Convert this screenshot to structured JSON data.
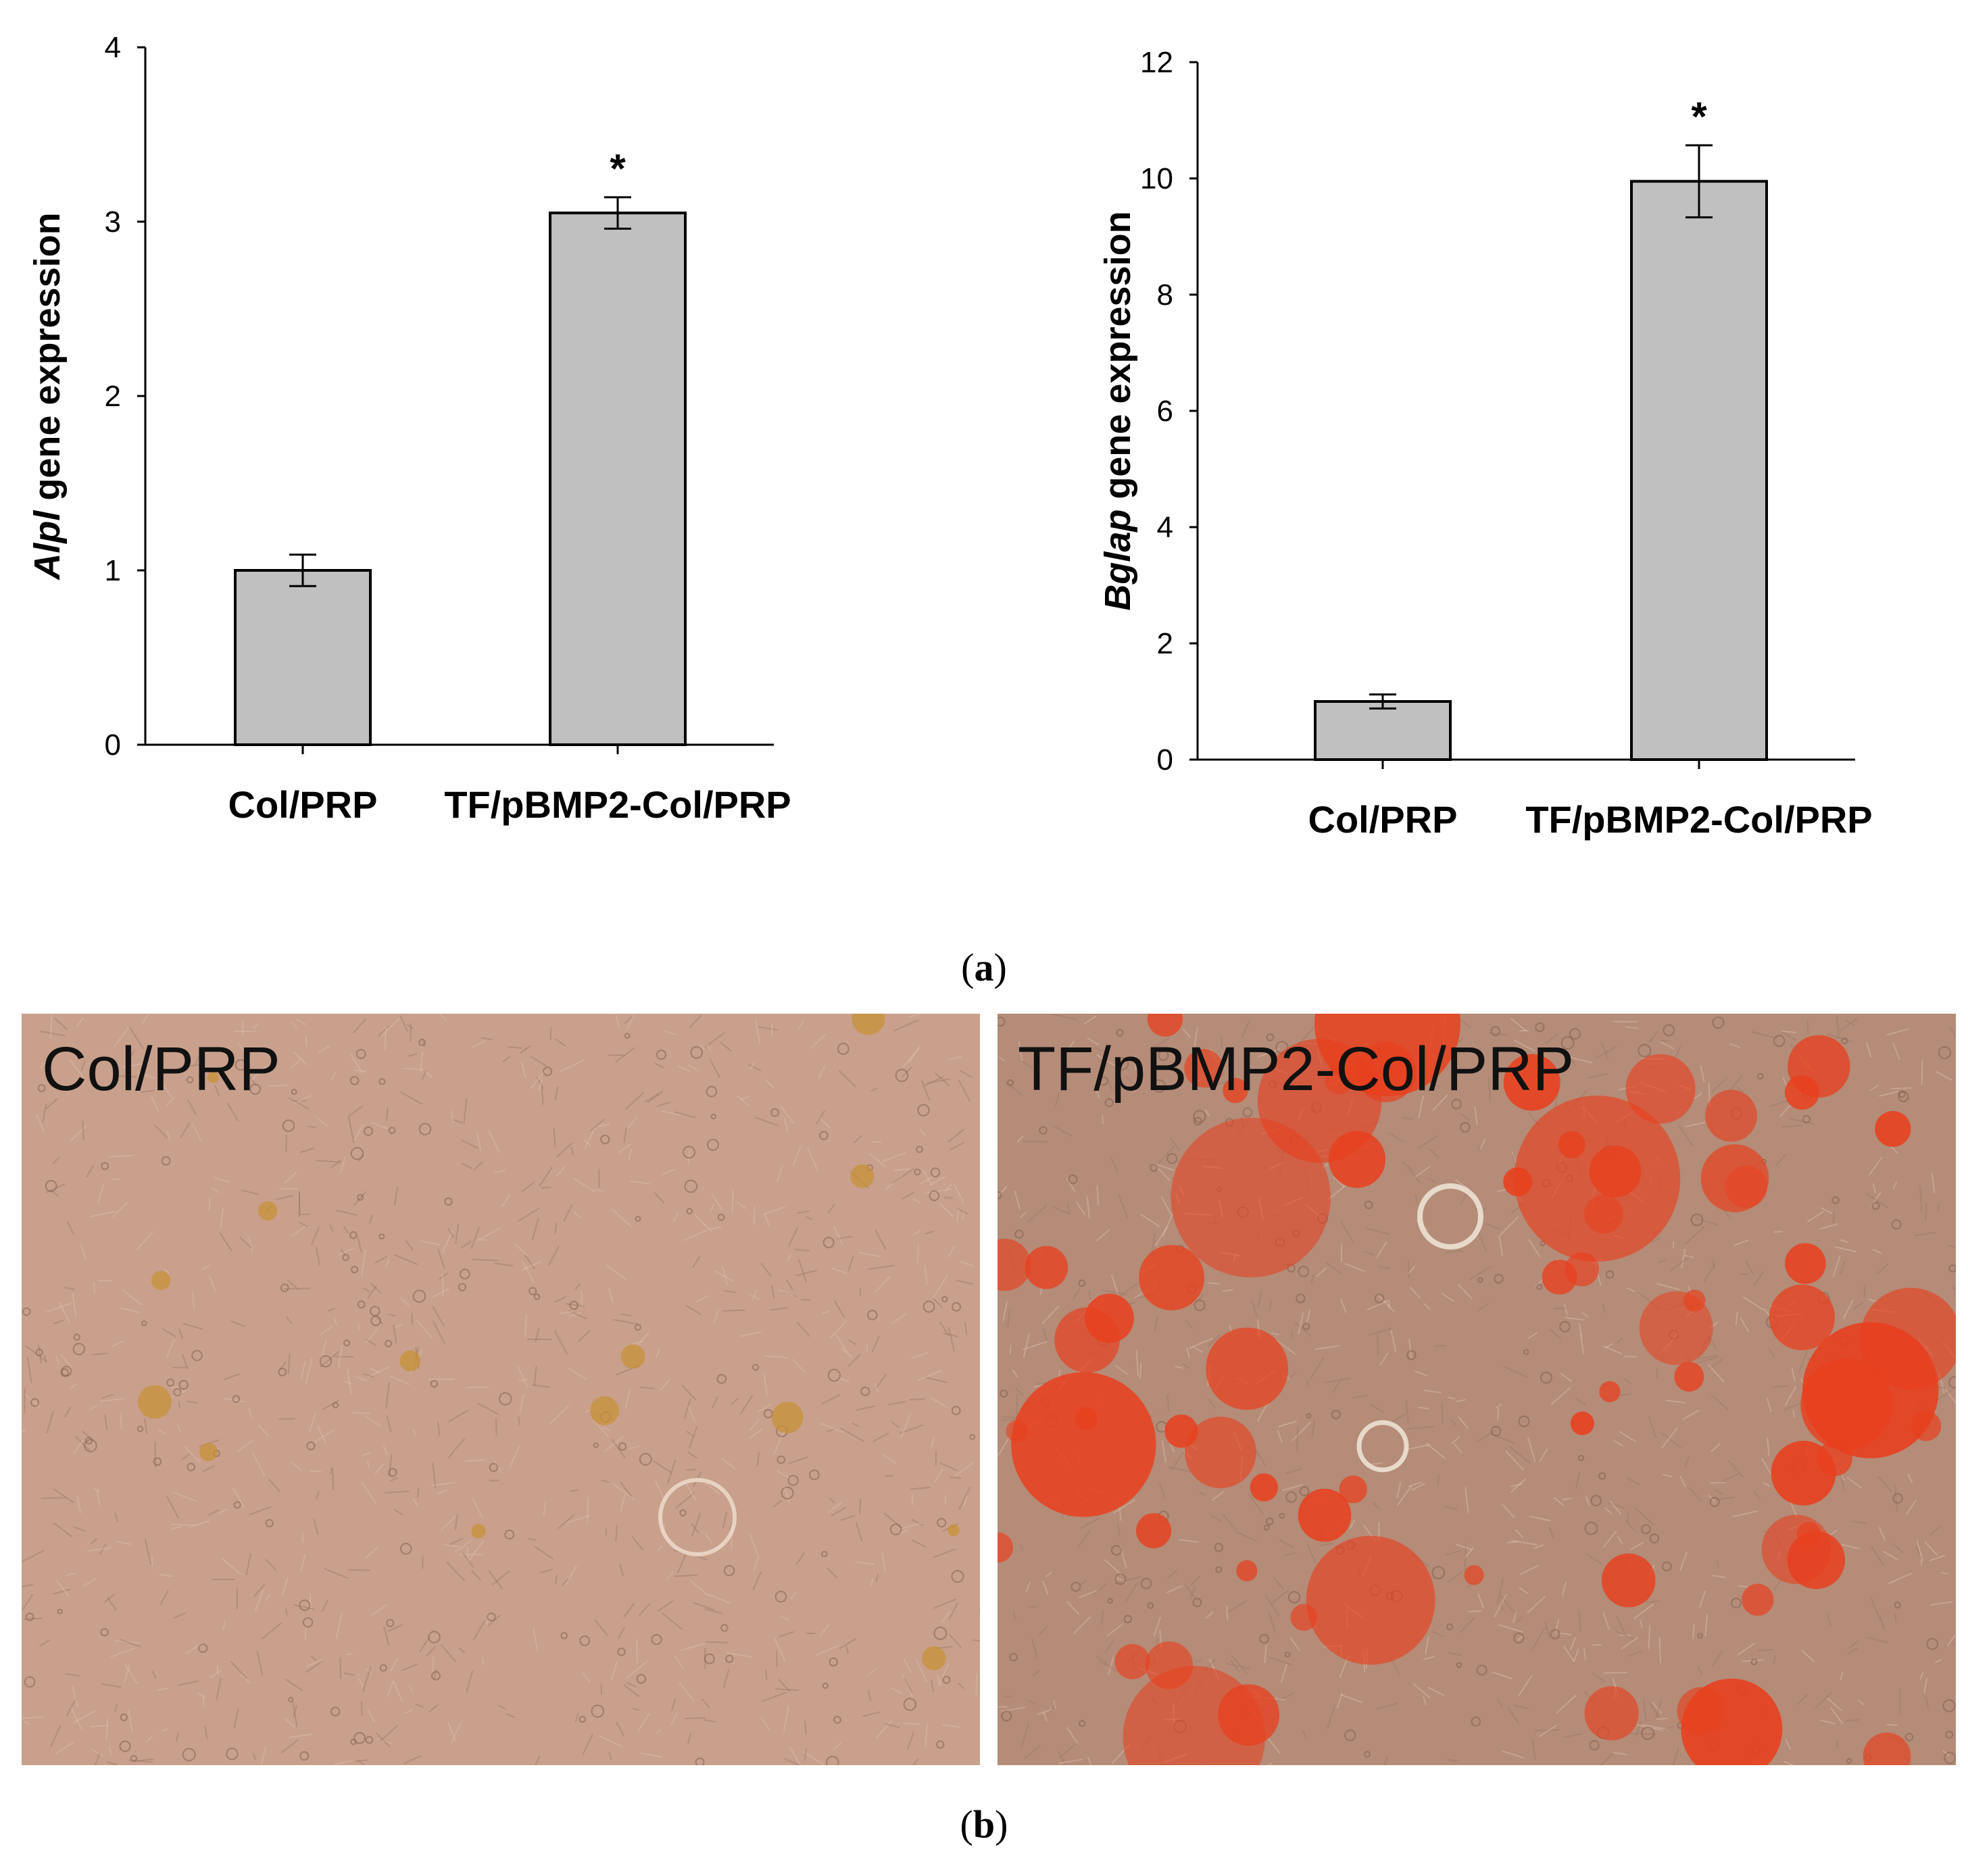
{
  "chart_data": [
    {
      "type": "bar",
      "categories": [
        "Col/PRP",
        "TF/pBMP2-Col/PRP"
      ],
      "values": [
        1.0,
        3.05
      ],
      "error": [
        0.09,
        0.09
      ],
      "significance": [
        "",
        "*"
      ],
      "ylabel_italic": "Alpl",
      "ylabel_rest": " gene expression",
      "ylim": [
        0,
        4
      ],
      "yticks": [
        "0",
        "1",
        "2",
        "3",
        "4"
      ],
      "bar_color": "#c0c0c0"
    },
    {
      "type": "bar",
      "categories": [
        "Col/PRP",
        "TF/pBMP2-Col/PRP"
      ],
      "values": [
        1.0,
        9.95
      ],
      "error": [
        0.12,
        0.62
      ],
      "significance": [
        "",
        "*"
      ],
      "ylabel_italic": "Bglap",
      "ylabel_rest": " gene expression",
      "ylim": [
        0,
        12
      ],
      "yticks": [
        "0",
        "2",
        "4",
        "6",
        "8",
        "10",
        "12"
      ],
      "bar_color": "#c0c0c0"
    }
  ],
  "captions": {
    "a_open": "(",
    "a_letter": "a",
    "a_close": ")",
    "b_open": "(",
    "b_letter": "b",
    "b_close": ")"
  },
  "micrographs": [
    {
      "label": "Col/PRP",
      "background": "#c8a08c",
      "stain": "sparse"
    },
    {
      "label": "TF/pBMP2-Col/PRP",
      "background": "#b48c78",
      "stain": "dense",
      "stain_color": "#e8401e"
    }
  ]
}
